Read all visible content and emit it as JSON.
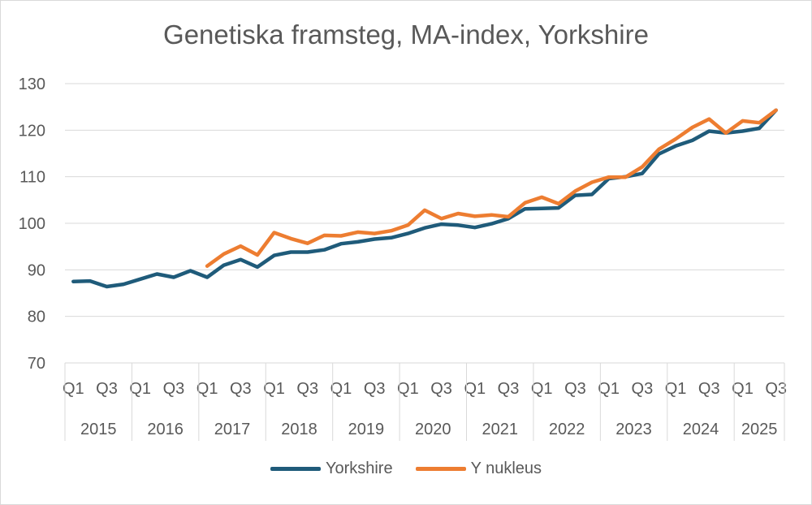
{
  "colors": {
    "yorkshire": "#1f5b7a",
    "nukleus": "#ed7d31",
    "grid": "#d9d9d9",
    "axis_text": "#595959"
  },
  "chart_data": {
    "type": "line",
    "title": "Genetiska framsteg, MA-index, Yorkshire",
    "ylim": [
      70,
      130
    ],
    "yticks": [
      70,
      80,
      90,
      100,
      110,
      120,
      130
    ],
    "grid": "horizontal",
    "legend": "bottom",
    "quarter_labels": [
      "Q1",
      "",
      "Q3",
      "",
      "Q1",
      "",
      "Q3",
      "",
      "Q1",
      "",
      "Q3",
      "",
      "Q1",
      "",
      "Q3",
      "",
      "Q1",
      "",
      "Q3",
      "",
      "Q1",
      "",
      "Q3",
      "",
      "Q1",
      "",
      "Q3",
      "",
      "Q1",
      "",
      "Q3",
      "",
      "Q1",
      "",
      "Q3",
      "",
      "Q1",
      "",
      "Q3",
      "",
      "Q1",
      "",
      "Q3"
    ],
    "years": [
      {
        "label": "2015",
        "quarters": 4
      },
      {
        "label": "2016",
        "quarters": 4
      },
      {
        "label": "2017",
        "quarters": 4
      },
      {
        "label": "2018",
        "quarters": 4
      },
      {
        "label": "2019",
        "quarters": 4
      },
      {
        "label": "2020",
        "quarters": 4
      },
      {
        "label": "2021",
        "quarters": 4
      },
      {
        "label": "2022",
        "quarters": 4
      },
      {
        "label": "2023",
        "quarters": 4
      },
      {
        "label": "2024",
        "quarters": 4
      },
      {
        "label": "2025",
        "quarters": 3
      }
    ],
    "series": [
      {
        "name": "Yorkshire",
        "color": "#1f5b7a",
        "values": [
          87.5,
          87.6,
          86.4,
          86.9,
          88.0,
          89.1,
          88.4,
          89.8,
          88.4,
          91.0,
          92.2,
          90.6,
          93.1,
          93.8,
          93.8,
          94.3,
          95.6,
          96.0,
          96.6,
          96.9,
          97.8,
          99.0,
          99.8,
          99.6,
          99.1,
          99.9,
          101.0,
          103.1,
          103.2,
          103.3,
          106.0,
          106.2,
          109.6,
          110.0,
          110.7,
          114.9,
          116.6,
          117.8,
          119.8,
          119.4,
          119.8,
          120.4,
          124.3
        ]
      },
      {
        "name": "Y nukleus",
        "color": "#ed7d31",
        "values": [
          null,
          null,
          null,
          null,
          null,
          null,
          null,
          null,
          90.8,
          93.4,
          95.1,
          93.2,
          98.0,
          96.7,
          95.7,
          97.4,
          97.3,
          98.1,
          97.8,
          98.4,
          99.6,
          102.8,
          101.0,
          102.1,
          101.5,
          101.8,
          101.4,
          104.4,
          105.6,
          104.2,
          106.9,
          108.8,
          109.9,
          109.9,
          112.1,
          115.9,
          118.1,
          120.6,
          122.4,
          119.4,
          122.0,
          121.6,
          124.3
        ]
      }
    ]
  }
}
